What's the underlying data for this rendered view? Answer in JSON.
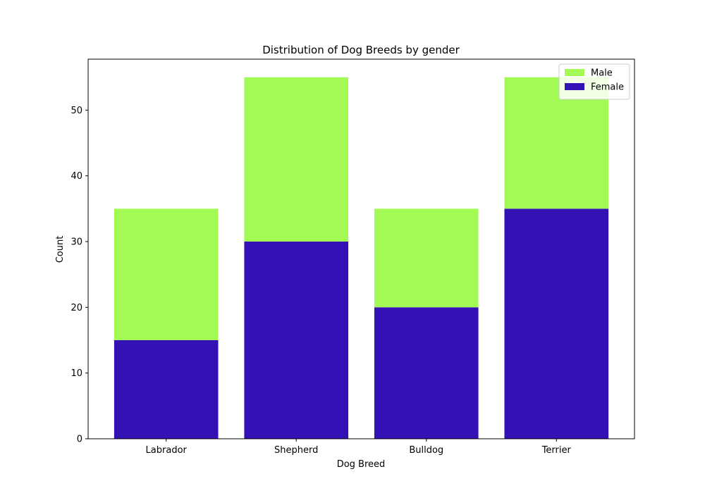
{
  "chart_data": {
    "type": "bar",
    "stacked": true,
    "title": "Distribution of Dog Breeds by gender",
    "xlabel": "Dog Breed",
    "ylabel": "Count",
    "categories": [
      "Labrador",
      "Shepherd",
      "Bulldog",
      "Terrier"
    ],
    "series": [
      {
        "name": "Female",
        "values": [
          15,
          30,
          20,
          35
        ],
        "color": "#3311b5"
      },
      {
        "name": "Male",
        "values": [
          20,
          25,
          15,
          20
        ],
        "color": "#a3fa55"
      }
    ],
    "ylim": [
      0,
      57.75
    ],
    "yticks": [
      0,
      10,
      20,
      30,
      40,
      50
    ],
    "grid": false,
    "legend_position": "top-right",
    "legend_order": [
      "Male",
      "Female"
    ]
  }
}
